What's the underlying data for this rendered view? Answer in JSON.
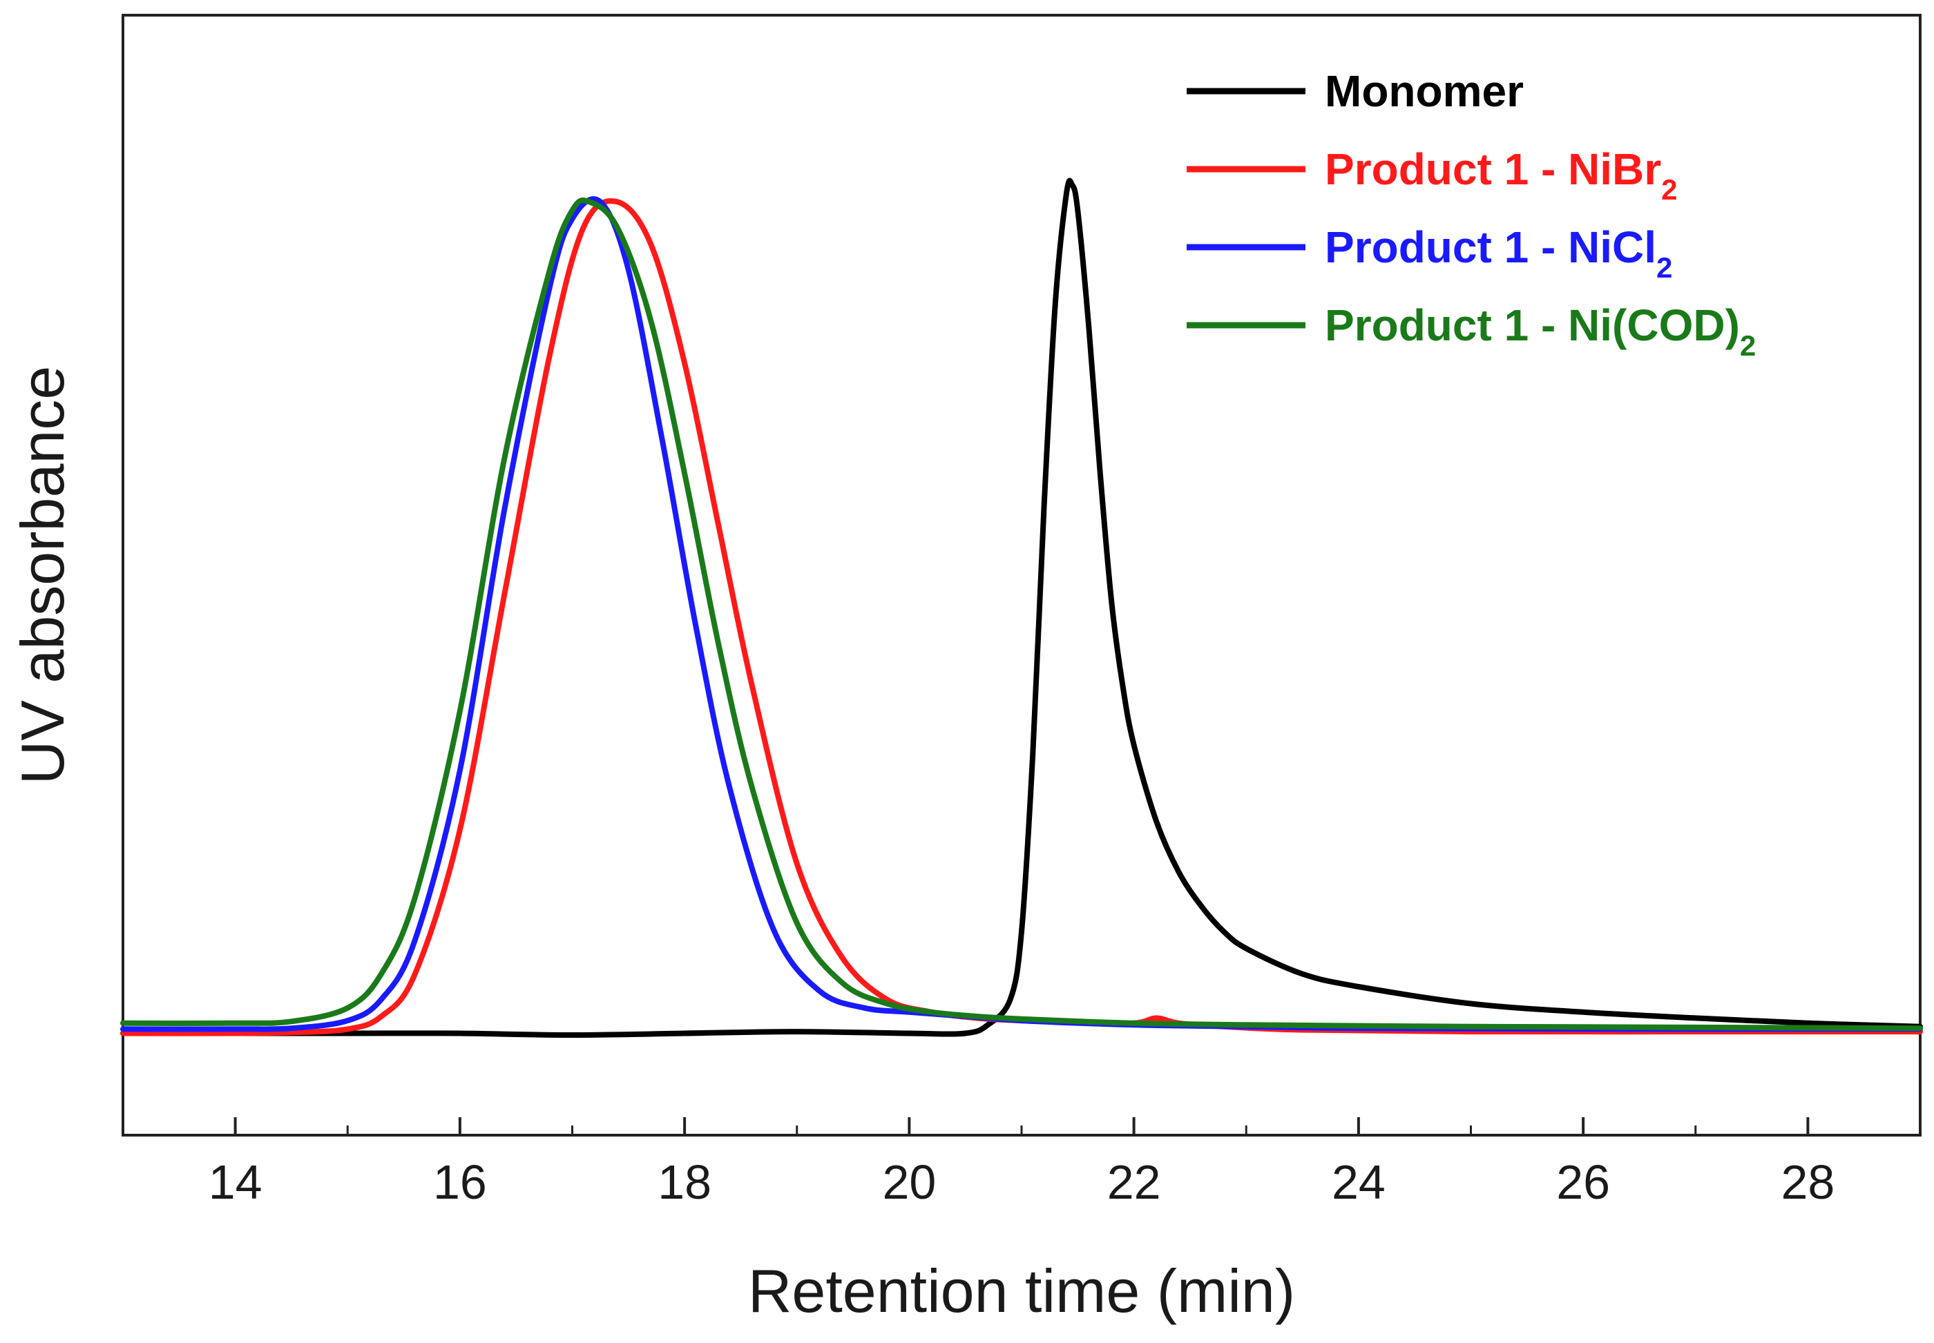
{
  "chart_data": {
    "type": "line",
    "title": "",
    "xlabel": "Retention time (min)",
    "ylabel": "UV absorbance",
    "xlim": [
      13,
      29
    ],
    "ylim": [
      -0.12,
      1.2
    ],
    "x_ticks": [
      14,
      16,
      18,
      20,
      22,
      24,
      26,
      28
    ],
    "x_minor_ticks": [
      15,
      17,
      19,
      21,
      23,
      25,
      27
    ],
    "x_tick_labels": [
      "14",
      "16",
      "18",
      "20",
      "22",
      "24",
      "26",
      "28"
    ],
    "y_ticks_shown": false,
    "grid": false,
    "legend_position": "top-right",
    "series": [
      {
        "name": "Monomer",
        "legend_main": "Monomer",
        "legend_sub": "",
        "color": "#000000",
        "x": [
          13,
          14,
          15,
          16,
          17,
          18,
          19,
          20,
          20.5,
          20.7,
          20.9,
          21.0,
          21.1,
          21.2,
          21.3,
          21.4,
          21.45,
          21.5,
          21.6,
          21.7,
          21.8,
          21.9,
          22.0,
          22.2,
          22.4,
          22.6,
          22.8,
          23.0,
          23.5,
          24,
          25,
          26,
          27,
          28,
          29
        ],
        "y": [
          0.0,
          0.0,
          0.0,
          0.0,
          -0.002,
          0.0,
          0.002,
          0.0,
          0.0,
          0.01,
          0.04,
          0.12,
          0.33,
          0.62,
          0.86,
          0.99,
          1.0,
          0.97,
          0.83,
          0.66,
          0.51,
          0.41,
          0.34,
          0.25,
          0.19,
          0.15,
          0.12,
          0.1,
          0.07,
          0.055,
          0.035,
          0.025,
          0.018,
          0.012,
          0.008
        ]
      },
      {
        "name": "Product 1 - NiBr2",
        "legend_main": "Product 1 - NiBr",
        "legend_sub": "2",
        "color": "#ff1a1a",
        "x": [
          13,
          14,
          14.5,
          15,
          15.3,
          15.6,
          16.0,
          16.4,
          16.8,
          17.1,
          17.4,
          17.7,
          18.0,
          18.3,
          18.6,
          19.0,
          19.4,
          19.8,
          20.2,
          20.6,
          21.0,
          21.5,
          22.0,
          22.2,
          22.4,
          22.8,
          23.5,
          25,
          27,
          29
        ],
        "y": [
          0.0,
          0.0,
          0.001,
          0.005,
          0.02,
          0.07,
          0.24,
          0.52,
          0.8,
          0.95,
          0.98,
          0.93,
          0.79,
          0.6,
          0.41,
          0.2,
          0.09,
          0.04,
          0.025,
          0.018,
          0.015,
          0.013,
          0.012,
          0.018,
          0.012,
          0.008,
          0.004,
          0.002,
          0.002,
          0.002
        ]
      },
      {
        "name": "Product 1 - NiCl2",
        "legend_main": "Product 1 - NiCl",
        "legend_sub": "2",
        "color": "#1a1aff",
        "x": [
          13,
          14,
          14.5,
          15,
          15.3,
          15.6,
          16.0,
          16.4,
          16.8,
          17.0,
          17.25,
          17.5,
          17.8,
          18.1,
          18.4,
          18.8,
          19.2,
          19.6,
          20.0,
          20.5,
          21.0,
          22.0,
          23.0,
          24,
          26,
          29
        ],
        "y": [
          0.005,
          0.005,
          0.006,
          0.015,
          0.04,
          0.11,
          0.31,
          0.62,
          0.88,
          0.96,
          0.98,
          0.9,
          0.7,
          0.48,
          0.29,
          0.12,
          0.05,
          0.03,
          0.025,
          0.02,
          0.015,
          0.01,
          0.008,
          0.006,
          0.005,
          0.005
        ]
      },
      {
        "name": "Product 1 - Ni(COD)2",
        "legend_main": "Product 1 - Ni(COD)",
        "legend_sub": "2",
        "color": "#1a7a1a",
        "x": [
          13,
          14,
          14.5,
          15,
          15.3,
          15.6,
          16.0,
          16.4,
          16.8,
          17.0,
          17.15,
          17.4,
          17.7,
          18.0,
          18.3,
          18.6,
          19.0,
          19.4,
          19.8,
          20.2,
          20.6,
          21.0,
          22.0,
          23.0,
          25,
          27,
          29
        ],
        "y": [
          0.012,
          0.012,
          0.014,
          0.03,
          0.07,
          0.16,
          0.38,
          0.68,
          0.9,
          0.97,
          0.98,
          0.95,
          0.84,
          0.66,
          0.46,
          0.29,
          0.13,
          0.06,
          0.035,
          0.025,
          0.02,
          0.017,
          0.012,
          0.01,
          0.008,
          0.007,
          0.006
        ]
      }
    ]
  }
}
